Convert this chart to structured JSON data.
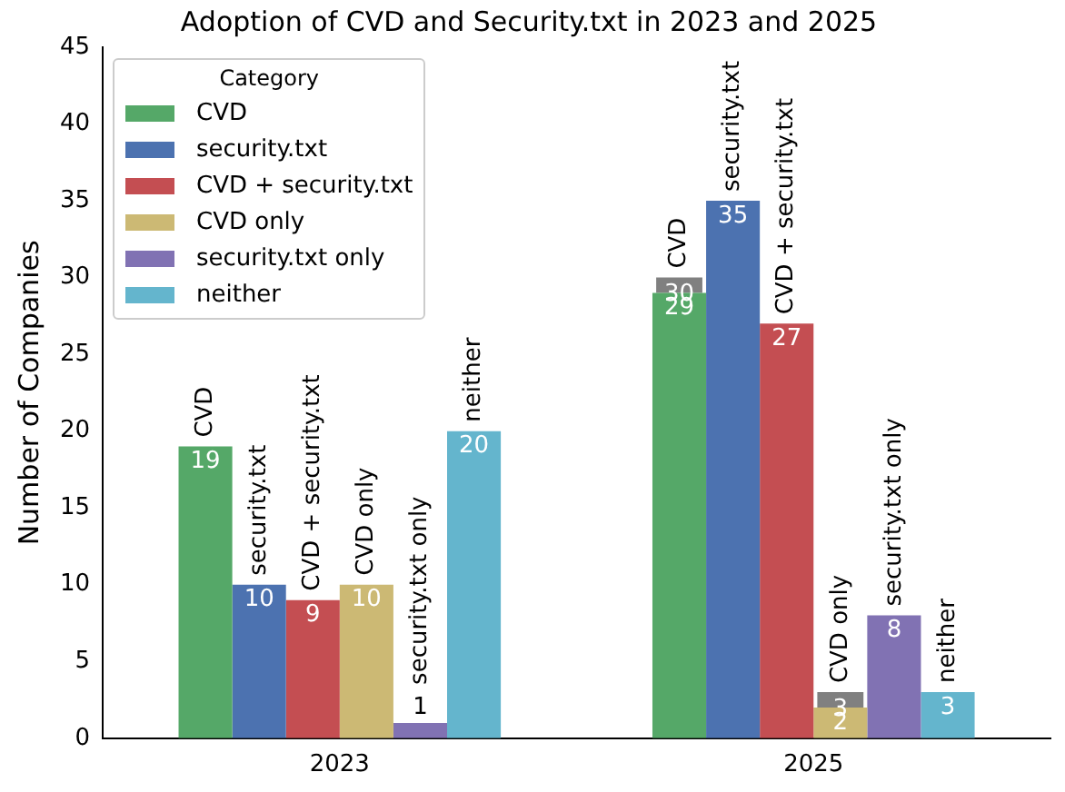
{
  "chart_data": {
    "type": "bar",
    "title": "Adoption of CVD and Security.txt in 2023 and 2025",
    "ylabel": "Number of Companies",
    "legend_title": "Category",
    "categories": [
      "2023",
      "2025"
    ],
    "legend": "top left",
    "annotations": [
      "30",
      "3"
    ],
    "grid": false,
    "ylim": [
      0,
      45
    ],
    "yticks": [
      0,
      5,
      10,
      15,
      20,
      25,
      30,
      35,
      40,
      45
    ],
    "series": [
      {
        "name": "CVD",
        "color": "#55a868",
        "values": [
          19,
          29
        ],
        "value_labels": [
          "19",
          "29"
        ]
      },
      {
        "color": "#808080",
        "base": [
          null,
          29
        ],
        "values": [
          null,
          1
        ]
      },
      {
        "name": "security.txt",
        "color": "#4c72b0",
        "values": [
          10,
          35
        ],
        "value_labels": [
          "10",
          "35"
        ]
      },
      {
        "name": "CVD + security.txt",
        "color": "#c44e52",
        "values": [
          9,
          27
        ],
        "value_labels": [
          "9",
          "27"
        ]
      },
      {
        "name": "CVD only",
        "color": "#ccb974",
        "values": [
          10,
          2
        ],
        "value_labels": [
          "10",
          "2"
        ]
      },
      {
        "color": "#808080",
        "base": [
          null,
          2
        ],
        "values": [
          null,
          1
        ]
      },
      {
        "name": "security.txt only",
        "color": "#8172b3",
        "values": [
          1,
          8
        ],
        "value_labels": [
          "1",
          "8"
        ]
      },
      {
        "name": "neither",
        "color": "#64b5cd",
        "values": [
          20,
          3
        ],
        "value_labels": [
          "20",
          "3"
        ]
      }
    ]
  }
}
